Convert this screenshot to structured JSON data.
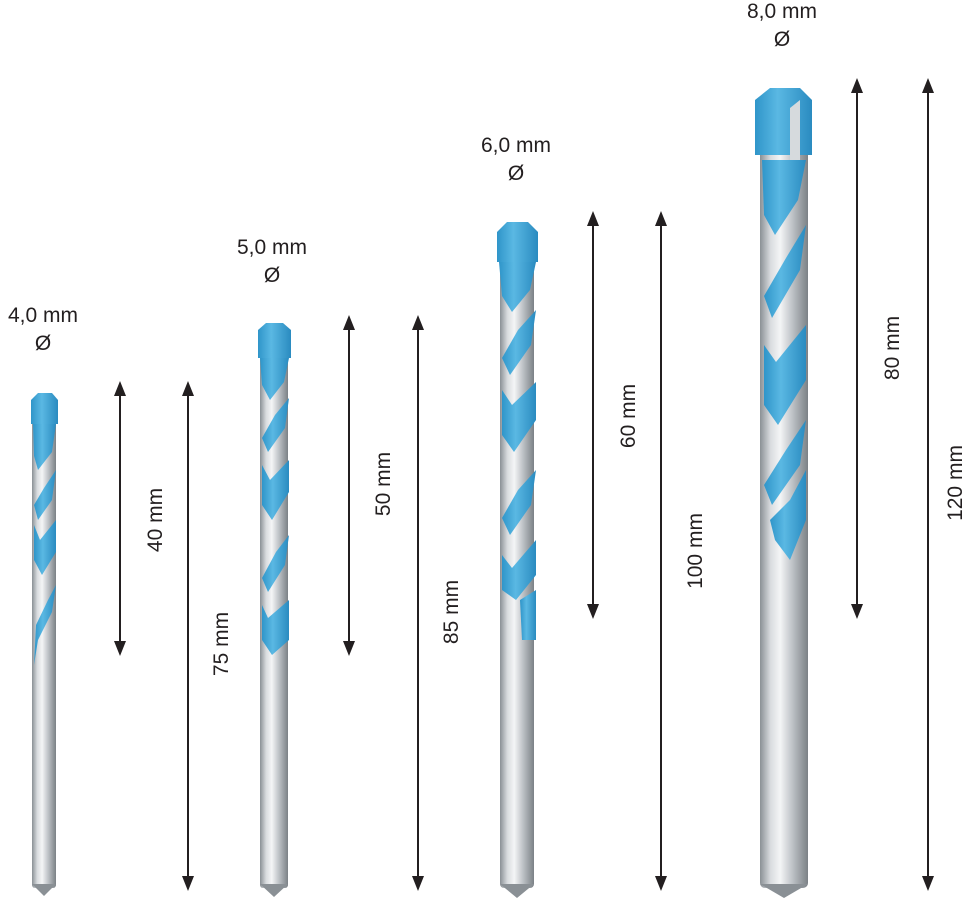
{
  "drill_bits": [
    {
      "diameter": "4,0 mm",
      "diameter_symbol": "Ø",
      "flute_length": "40 mm",
      "total_length": "75 mm"
    },
    {
      "diameter": "5,0 mm",
      "diameter_symbol": "Ø",
      "flute_length": "50 mm",
      "total_length": "85 mm"
    },
    {
      "diameter": "6,0 mm",
      "diameter_symbol": "Ø",
      "flute_length": "60 mm",
      "total_length": "100 mm"
    },
    {
      "diameter": "8,0 mm",
      "diameter_symbol": "Ø",
      "flute_length": "80 mm",
      "total_length": "120 mm"
    }
  ],
  "colors": {
    "flute_blue": "#3fa9d9",
    "flute_blue_dark": "#1f86bd",
    "shank_steel": "#b8bcc0",
    "shank_steel_light": "#e6e8ea",
    "shank_steel_dark": "#7f858a",
    "arrow": "#231f20",
    "text": "#231f20"
  }
}
